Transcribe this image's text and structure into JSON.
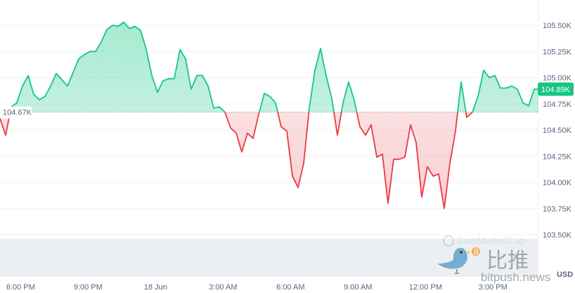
{
  "chart_data": {
    "type": "area",
    "title": "",
    "xlabel": "",
    "ylabel": "",
    "currency_label": "USD",
    "baseline": {
      "value": 104.67,
      "label": "104.67K"
    },
    "current_price": {
      "value": 104.89,
      "label": "104.89K"
    },
    "ylim": [
      103.35,
      105.7
    ],
    "y_ticks": [
      {
        "value": 105.5,
        "label": "105.50K"
      },
      {
        "value": 105.25,
        "label": "105.25K"
      },
      {
        "value": 105.0,
        "label": "105.00K"
      },
      {
        "value": 104.75,
        "label": "104.75K"
      },
      {
        "value": 104.5,
        "label": "104.50K"
      },
      {
        "value": 104.25,
        "label": "104.25K"
      },
      {
        "value": 104.0,
        "label": "104.00K"
      },
      {
        "value": 103.75,
        "label": "103.75K"
      },
      {
        "value": 103.5,
        "label": "103.50K"
      }
    ],
    "x_ticks": [
      {
        "time": "17 Jun 18:00",
        "label": "6:00 PM"
      },
      {
        "time": "17 Jun 21:00",
        "label": "9:00 PM"
      },
      {
        "time": "18 Jun 00:00",
        "label": "18 Jun"
      },
      {
        "time": "18 Jun 03:00",
        "label": "3:00 AM"
      },
      {
        "time": "18 Jun 06:00",
        "label": "6:00 AM"
      },
      {
        "time": "18 Jun 09:00",
        "label": "9:00 AM"
      },
      {
        "time": "18 Jun 12:00",
        "label": "12:00 PM"
      },
      {
        "time": "18 Jun 15:00",
        "label": "3:00 PM"
      }
    ],
    "grid": true,
    "colors": {
      "up": "#16c784",
      "down": "#ea3943",
      "grid": "#f1f3f6",
      "text": "#58667e",
      "volume": "#eaedf1"
    },
    "series": [
      {
        "unit": "K USD",
        "points": [
          [
            "17 Jun 17:05",
            104.61
          ],
          [
            "17 Jun 17:20",
            104.45
          ],
          [
            "17 Jun 17:35",
            104.72
          ],
          [
            "17 Jun 17:50",
            104.76
          ],
          [
            "17 Jun 18:05",
            104.92
          ],
          [
            "17 Jun 18:20",
            105.02
          ],
          [
            "17 Jun 18:35",
            104.84
          ],
          [
            "17 Jun 18:50",
            104.79
          ],
          [
            "17 Jun 19:05",
            104.82
          ],
          [
            "17 Jun 19:20",
            104.92
          ],
          [
            "17 Jun 19:35",
            105.04
          ],
          [
            "17 Jun 19:50",
            104.98
          ],
          [
            "17 Jun 20:05",
            104.92
          ],
          [
            "17 Jun 20:20",
            105.05
          ],
          [
            "17 Jun 20:35",
            105.18
          ],
          [
            "17 Jun 20:50",
            105.22
          ],
          [
            "17 Jun 21:05",
            105.25
          ],
          [
            "17 Jun 21:20",
            105.25
          ],
          [
            "17 Jun 21:35",
            105.34
          ],
          [
            "17 Jun 21:50",
            105.46
          ],
          [
            "17 Jun 22:05",
            105.5
          ],
          [
            "17 Jun 22:20",
            105.49
          ],
          [
            "17 Jun 22:35",
            105.53
          ],
          [
            "17 Jun 22:50",
            105.47
          ],
          [
            "17 Jun 23:05",
            105.49
          ],
          [
            "17 Jun 23:20",
            105.45
          ],
          [
            "17 Jun 23:35",
            105.27
          ],
          [
            "17 Jun 23:50",
            105.02
          ],
          [
            "18 Jun 00:05",
            104.86
          ],
          [
            "18 Jun 00:20",
            104.97
          ],
          [
            "18 Jun 00:35",
            104.99
          ],
          [
            "18 Jun 00:50",
            104.99
          ],
          [
            "18 Jun 01:05",
            105.27
          ],
          [
            "18 Jun 01:20",
            105.18
          ],
          [
            "18 Jun 01:35",
            104.89
          ],
          [
            "18 Jun 01:50",
            105.02
          ],
          [
            "18 Jun 02:05",
            105.02
          ],
          [
            "18 Jun 02:20",
            104.92
          ],
          [
            "18 Jun 02:35",
            104.71
          ],
          [
            "18 Jun 02:50",
            104.72
          ],
          [
            "18 Jun 03:05",
            104.67
          ],
          [
            "18 Jun 03:20",
            104.52
          ],
          [
            "18 Jun 03:35",
            104.47
          ],
          [
            "18 Jun 03:50",
            104.29
          ],
          [
            "18 Jun 04:05",
            104.47
          ],
          [
            "18 Jun 04:20",
            104.42
          ],
          [
            "18 Jun 04:35",
            104.65
          ],
          [
            "18 Jun 04:50",
            104.85
          ],
          [
            "18 Jun 05:05",
            104.82
          ],
          [
            "18 Jun 05:20",
            104.76
          ],
          [
            "18 Jun 05:35",
            104.53
          ],
          [
            "18 Jun 05:50",
            104.49
          ],
          [
            "18 Jun 06:05",
            104.06
          ],
          [
            "18 Jun 06:20",
            103.95
          ],
          [
            "18 Jun 06:35",
            104.18
          ],
          [
            "18 Jun 06:50",
            104.71
          ],
          [
            "18 Jun 07:05",
            105.07
          ],
          [
            "18 Jun 07:20",
            105.28
          ],
          [
            "18 Jun 07:35",
            105.02
          ],
          [
            "18 Jun 07:50",
            104.8
          ],
          [
            "18 Jun 08:05",
            104.45
          ],
          [
            "18 Jun 08:20",
            104.76
          ],
          [
            "18 Jun 08:35",
            104.96
          ],
          [
            "18 Jun 08:50",
            104.78
          ],
          [
            "18 Jun 09:05",
            104.53
          ],
          [
            "18 Jun 09:20",
            104.45
          ],
          [
            "18 Jun 09:35",
            104.55
          ],
          [
            "18 Jun 09:50",
            104.24
          ],
          [
            "18 Jun 10:05",
            104.27
          ],
          [
            "18 Jun 10:20",
            103.8
          ],
          [
            "18 Jun 10:35",
            104.22
          ],
          [
            "18 Jun 10:50",
            104.22
          ],
          [
            "18 Jun 11:05",
            104.24
          ],
          [
            "18 Jun 11:20",
            104.55
          ],
          [
            "18 Jun 11:35",
            104.38
          ],
          [
            "18 Jun 11:50",
            103.86
          ],
          [
            "18 Jun 12:05",
            104.15
          ],
          [
            "18 Jun 12:20",
            104.06
          ],
          [
            "18 Jun 12:35",
            104.08
          ],
          [
            "18 Jun 12:50",
            103.75
          ],
          [
            "18 Jun 13:05",
            104.18
          ],
          [
            "18 Jun 13:20",
            104.49
          ],
          [
            "18 Jun 13:35",
            104.96
          ],
          [
            "18 Jun 13:50",
            104.62
          ],
          [
            "18 Jun 14:05",
            104.67
          ],
          [
            "18 Jun 14:20",
            104.82
          ],
          [
            "18 Jun 14:35",
            105.07
          ],
          [
            "18 Jun 14:50",
            105.0
          ],
          [
            "18 Jun 15:05",
            105.02
          ],
          [
            "18 Jun 15:20",
            104.9
          ],
          [
            "18 Jun 15:35",
            104.9
          ],
          [
            "18 Jun 15:50",
            104.92
          ],
          [
            "18 Jun 16:05",
            104.89
          ],
          [
            "18 Jun 16:20",
            104.76
          ],
          [
            "18 Jun 16:35",
            104.73
          ],
          [
            "18 Jun 16:50",
            104.89
          ],
          [
            "18 Jun 17:05",
            104.89
          ]
        ]
      }
    ]
  },
  "watermark": {
    "cn": "比推",
    "en": "bitpush.news",
    "faint": "CoinMarketCap"
  }
}
